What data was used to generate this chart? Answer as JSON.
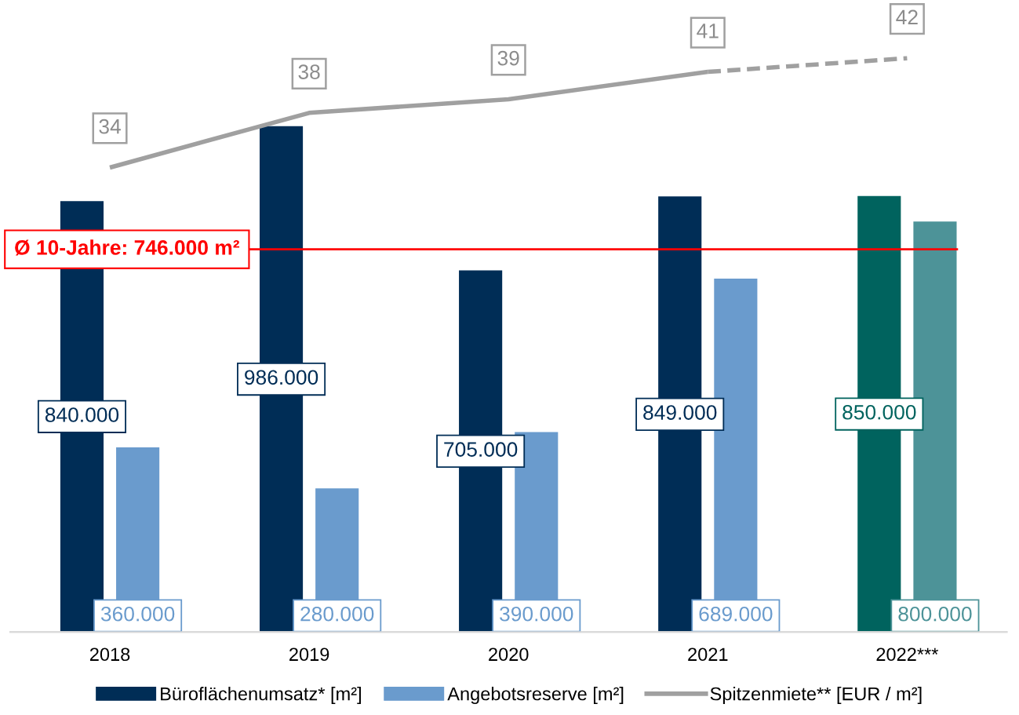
{
  "chart_data": {
    "type": "bar",
    "categories": [
      "2018",
      "2019",
      "2020",
      "2021",
      "2022***"
    ],
    "ylim": [
      0,
      1225000
    ],
    "y2lim": [
      0,
      46
    ],
    "tick_labels": "x",
    "grid": false,
    "legend": "bottom",
    "series": [
      {
        "name": "Büroflächenumsatz* [m²]",
        "color": "#002d56",
        "colors": [
          "#002d56",
          "#002d56",
          "#002d56",
          "#002d56",
          "#00635e"
        ],
        "values": [
          840000,
          986000,
          705000,
          849000,
          850000
        ],
        "value_labels": [
          "840.000",
          "986.000",
          "705.000",
          "849.000",
          "850.000"
        ]
      },
      {
        "name": "Angebotsreserve [m²]",
        "color": "#6a9bcd",
        "colors": [
          "#6a9bcd",
          "#6a9bcd",
          "#6a9bcd",
          "#6a9bcd",
          "#4d9398"
        ],
        "values": [
          360000,
          280000,
          390000,
          689000,
          800000
        ],
        "value_labels": [
          "360.000",
          "280.000",
          "390.000",
          "689.000",
          "800.000"
        ]
      },
      {
        "name": "Spitzenmiete** [EUR / m²]",
        "type": "line",
        "axis": "y2",
        "color": "#a0a0a0",
        "line_style": "solid",
        "values": [
          34,
          38,
          39,
          41,
          null
        ],
        "value_labels": [
          "34",
          "38",
          "39",
          "41",
          null
        ]
      },
      {
        "type": "line",
        "axis": "y2",
        "color": "#a0a0a0",
        "line_style": "dashed",
        "values": [
          null,
          null,
          null,
          41,
          42
        ],
        "value_labels": [
          null,
          null,
          null,
          null,
          "42"
        ]
      }
    ],
    "ref_lines": [
      {
        "axis": "y",
        "value": 746000,
        "label": "Ø 10-Jahre: 746.000 m²",
        "color": "#ff0000"
      }
    ]
  }
}
